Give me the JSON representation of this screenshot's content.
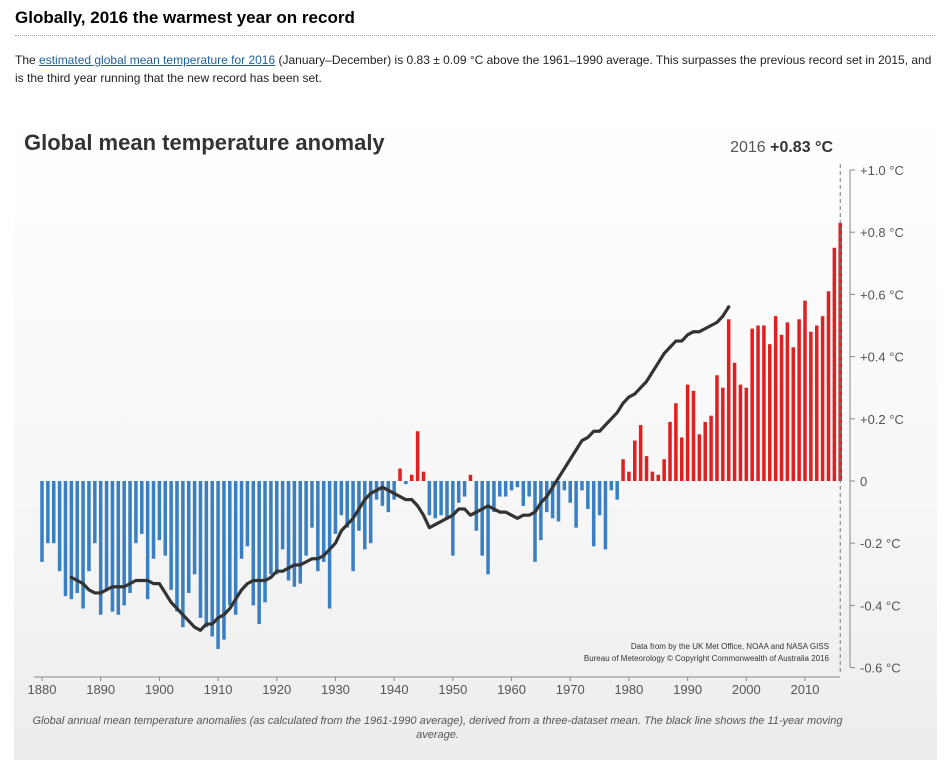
{
  "page": {
    "heading": "Globally, 2016 the warmest year on record",
    "intro_prefix": "The ",
    "intro_link": "estimated global mean temperature for 2016",
    "intro_suffix": " (January–December) is 0.83 ± 0.09 °C above the 1961–1990 average. This surpasses the previous record set in 2015, and is the third year running that the new record has been set."
  },
  "caption": "Global annual mean temperature anomalies (as calculated from the 1961-1990 average), derived from a three-dataset mean. The black line shows the 11-year moving average.",
  "chart_data": {
    "type": "bar",
    "title": "Global mean temperature anomaly",
    "highlight_year": "2016",
    "highlight_value": "+0.83 °C",
    "credit_line1": "Data from by the UK Met Office, NOAA and NASA GISS",
    "credit_line2": "Bureau of Meteorology © Copyright Commonwealth of Australia 2016",
    "xlabel": "",
    "ylabel": "",
    "ylim": [
      -0.6,
      1.0
    ],
    "xlim": [
      1880,
      2016
    ],
    "x_ticks": [
      "1880",
      "1890",
      "1900",
      "1910",
      "1920",
      "1930",
      "1940",
      "1950",
      "1960",
      "1970",
      "1980",
      "1990",
      "2000",
      "2010"
    ],
    "y_ticks": [
      {
        "value": 1.0,
        "label": "+1.0 °C"
      },
      {
        "value": 0.8,
        "label": "+0.8 °C"
      },
      {
        "value": 0.6,
        "label": "+0.6 °C"
      },
      {
        "value": 0.4,
        "label": "+0.4 °C"
      },
      {
        "value": 0.2,
        "label": "+0.2 °C"
      },
      {
        "value": 0.0,
        "label": "0"
      },
      {
        "value": -0.2,
        "label": "-0.2 °C"
      },
      {
        "value": -0.4,
        "label": "-0.4 °C"
      },
      {
        "value": -0.6,
        "label": "-0.6 °C"
      }
    ],
    "colors": {
      "positive": "#e02020",
      "negative": "#3a7fc1",
      "smooth": "#333333",
      "axis": "#888888"
    },
    "series": [
      {
        "name": "Annual anomaly",
        "start_year": 1880,
        "values": [
          -0.26,
          -0.2,
          -0.2,
          -0.29,
          -0.37,
          -0.38,
          -0.36,
          -0.41,
          -0.29,
          -0.2,
          -0.43,
          -0.35,
          -0.42,
          -0.43,
          -0.4,
          -0.36,
          -0.2,
          -0.17,
          -0.38,
          -0.25,
          -0.19,
          -0.24,
          -0.35,
          -0.42,
          -0.47,
          -0.36,
          -0.3,
          -0.44,
          -0.47,
          -0.5,
          -0.54,
          -0.51,
          -0.4,
          -0.43,
          -0.25,
          -0.21,
          -0.4,
          -0.46,
          -0.39,
          -0.3,
          -0.3,
          -0.22,
          -0.32,
          -0.34,
          -0.33,
          -0.24,
          -0.15,
          -0.29,
          -0.26,
          -0.41,
          -0.17,
          -0.11,
          -0.15,
          -0.29,
          -0.16,
          -0.22,
          -0.2,
          -0.06,
          -0.08,
          -0.1,
          -0.06,
          0.04,
          -0.01,
          0.02,
          0.16,
          0.03,
          -0.11,
          -0.12,
          -0.11,
          -0.12,
          -0.24,
          -0.07,
          -0.05,
          0.02,
          -0.16,
          -0.24,
          -0.3,
          -0.1,
          -0.05,
          -0.05,
          -0.03,
          -0.02,
          -0.08,
          -0.05,
          -0.26,
          -0.19,
          -0.1,
          -0.12,
          -0.13,
          -0.03,
          -0.07,
          -0.15,
          -0.03,
          -0.09,
          -0.21,
          -0.11,
          -0.22,
          -0.03,
          -0.06,
          0.07,
          0.03,
          0.13,
          0.18,
          0.08,
          0.03,
          0.02,
          0.07,
          0.19,
          0.25,
          0.14,
          0.31,
          0.29,
          0.15,
          0.19,
          0.21,
          0.34,
          0.3,
          0.52,
          0.38,
          0.31,
          0.3,
          0.49,
          0.5,
          0.5,
          0.44,
          0.53,
          0.47,
          0.51,
          0.43,
          0.52,
          0.58,
          0.48,
          0.5,
          0.53,
          0.61,
          0.75,
          0.83
        ]
      },
      {
        "name": "11-year moving average",
        "start_year": 1885,
        "values": [
          -0.31,
          -0.32,
          -0.33,
          -0.35,
          -0.36,
          -0.36,
          -0.35,
          -0.34,
          -0.34,
          -0.34,
          -0.33,
          -0.32,
          -0.32,
          -0.32,
          -0.33,
          -0.33,
          -0.36,
          -0.39,
          -0.41,
          -0.43,
          -0.45,
          -0.47,
          -0.48,
          -0.46,
          -0.46,
          -0.44,
          -0.43,
          -0.41,
          -0.38,
          -0.35,
          -0.33,
          -0.32,
          -0.32,
          -0.32,
          -0.31,
          -0.29,
          -0.29,
          -0.28,
          -0.27,
          -0.27,
          -0.26,
          -0.25,
          -0.25,
          -0.24,
          -0.22,
          -0.2,
          -0.16,
          -0.14,
          -0.12,
          -0.09,
          -0.06,
          -0.04,
          -0.03,
          -0.02,
          -0.03,
          -0.04,
          -0.05,
          -0.06,
          -0.06,
          -0.08,
          -0.11,
          -0.15,
          -0.14,
          -0.13,
          -0.12,
          -0.11,
          -0.09,
          -0.09,
          -0.11,
          -0.1,
          -0.09,
          -0.08,
          -0.09,
          -0.1,
          -0.1,
          -0.11,
          -0.12,
          -0.11,
          -0.11,
          -0.1,
          -0.07,
          -0.05,
          -0.02,
          0.01,
          0.04,
          0.07,
          0.1,
          0.13,
          0.14,
          0.16,
          0.16,
          0.18,
          0.2,
          0.22,
          0.25,
          0.27,
          0.28,
          0.3,
          0.32,
          0.35,
          0.38,
          0.41,
          0.43,
          0.45,
          0.45,
          0.47,
          0.48,
          0.48,
          0.49,
          0.5,
          0.51,
          0.53,
          0.56
        ]
      }
    ]
  }
}
